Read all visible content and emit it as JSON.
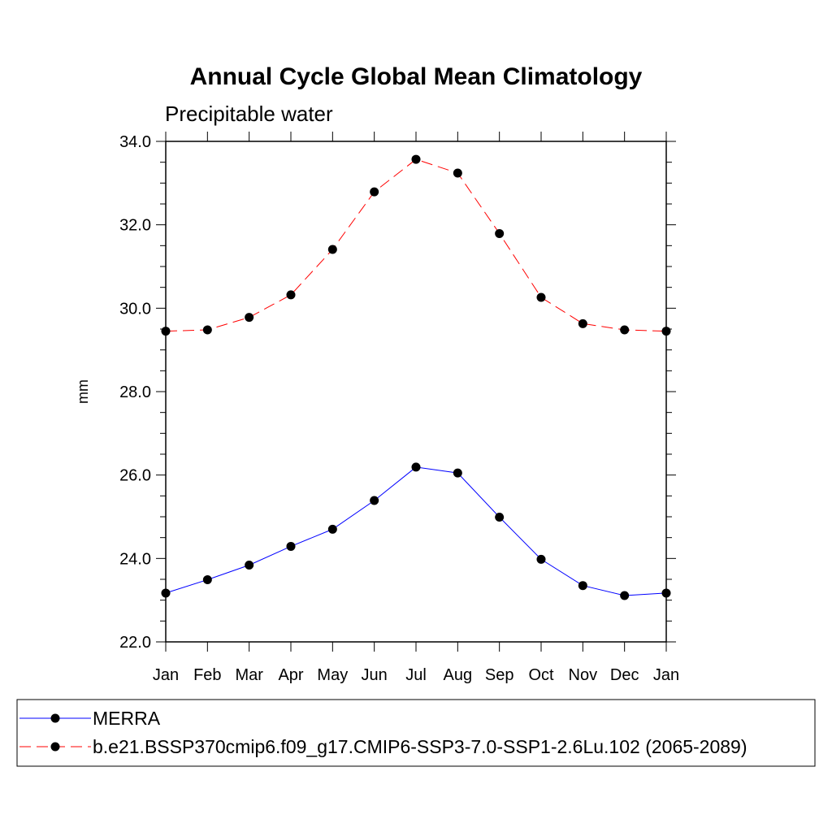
{
  "chart_data": {
    "type": "line",
    "title": "Annual Cycle Global Mean Climatology",
    "subtitle": "Precipitable water",
    "xlabel": "",
    "ylabel": "mm",
    "categories": [
      "Jan",
      "Feb",
      "Mar",
      "Apr",
      "May",
      "Jun",
      "Jul",
      "Aug",
      "Sep",
      "Oct",
      "Nov",
      "Dec",
      "Jan"
    ],
    "ylim": [
      22.0,
      34.0
    ],
    "yticks": [
      "22.0",
      "24.0",
      "26.0",
      "28.0",
      "30.0",
      "32.0",
      "34.0"
    ],
    "grid": false,
    "legend_position": "bottom",
    "series": [
      {
        "name": "MERRA",
        "color": "#0000ff",
        "line_style": "solid",
        "marker": "filled-circle",
        "values": [
          23.17,
          23.49,
          23.84,
          24.29,
          24.7,
          25.39,
          26.19,
          26.05,
          24.99,
          23.98,
          23.35,
          23.11,
          23.17
        ]
      },
      {
        "name": "b.e21.BSSP370cmip6.f09_g17.CMIP6-SSP3-7.0-SSP1-2.6Lu.102 (2065-2089)",
        "color": "#ff0000",
        "line_style": "dashed",
        "marker": "filled-circle",
        "values": [
          29.45,
          29.48,
          29.78,
          30.32,
          31.41,
          32.79,
          33.57,
          33.24,
          31.79,
          30.26,
          29.63,
          29.48,
          29.45
        ]
      }
    ]
  }
}
